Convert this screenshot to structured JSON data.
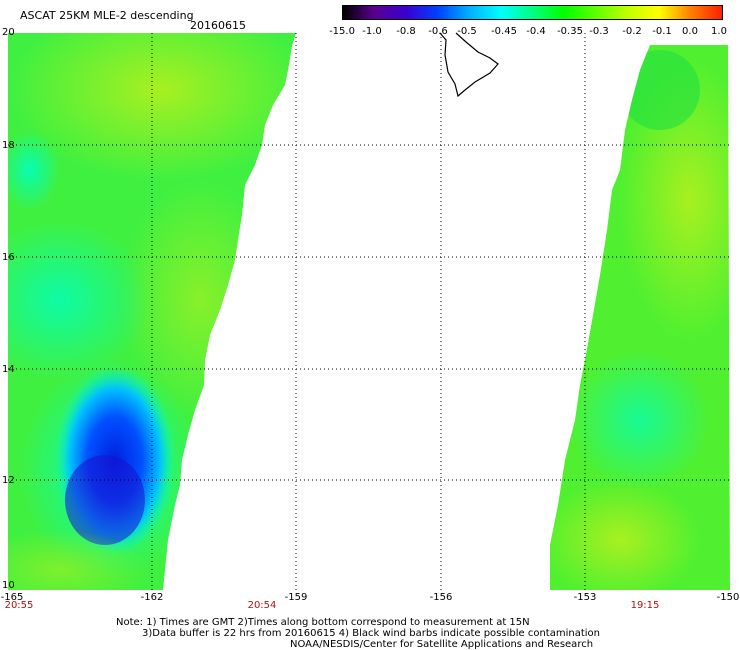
{
  "header": {
    "title": "ASCAT 25KM MLE-2 descending",
    "date": "20160615"
  },
  "colorbar": {
    "labels": [
      "-15.0",
      "-1.0",
      "-0.8",
      "-0.6",
      "-0.5",
      "-0.45",
      "-0.4",
      "-0.35",
      "-0.3",
      "-0.2",
      "-0.1",
      "0.0",
      "1.0"
    ],
    "colors": [
      "#000000",
      "#5a0090",
      "#3a00d0",
      "#0040ff",
      "#00b0ff",
      "#00ffff",
      "#00ff80",
      "#00ff00",
      "#60ff00",
      "#c0ff00",
      "#ffff00",
      "#ff8000",
      "#ff2000"
    ]
  },
  "map": {
    "lon_range": [
      -165,
      -150
    ],
    "lat_range": [
      10,
      20
    ],
    "x_ticks": [
      "-165",
      "-162",
      "-159",
      "-156",
      "-153",
      "-150"
    ],
    "y_ticks": [
      "20",
      "18",
      "16",
      "14",
      "12",
      "10"
    ],
    "time_labels": [
      "20:55",
      "20:54",
      "19:15"
    ]
  },
  "notes": {
    "line1": "Note: 1) Times are GMT 2)Times along bottom correspond to measurement at 15N",
    "line2": "3)Data buffer is 22 hrs from 20160615 4) Black wind barbs indicate possible contamination",
    "line3": "NOAA/NESDIS/Center for Satellite Applications and Research"
  }
}
